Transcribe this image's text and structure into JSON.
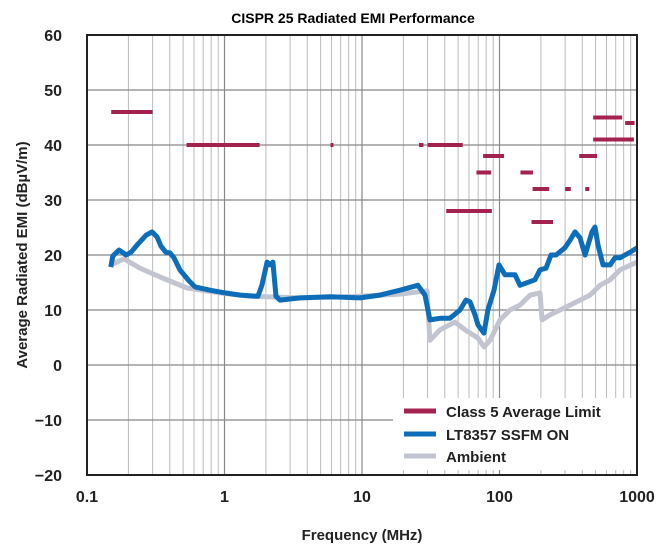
{
  "chart_data": {
    "type": "line",
    "title": "CISPR 25 Radiated EMI Performance",
    "xlabel": "Frequency (MHz)",
    "ylabel": "Average Radiated EMI (dBµV/m)",
    "xscale": "log",
    "xlim": [
      0.1,
      1000
    ],
    "ylim": [
      -20,
      60
    ],
    "xticks": [
      "0.1",
      "1",
      "10",
      "100",
      "1000"
    ],
    "yticks": [
      "−20",
      "−10",
      "0",
      "10",
      "20",
      "30",
      "40",
      "50",
      "60"
    ],
    "grid": true,
    "legend_position": "bottom-right",
    "colors": {
      "limit": "#a3224f",
      "ssfm": "#0d6db8",
      "ambient": "#c2c5cf"
    },
    "limit_segments": {
      "name": "Class 5 Average Limit",
      "segments": [
        {
          "f": [
            0.15,
            0.3
          ],
          "db": 46
        },
        {
          "f": [
            0.53,
            1.8
          ],
          "db": 40
        },
        {
          "f": [
            5.9,
            6.2
          ],
          "db": 40
        },
        {
          "f": [
            26,
            28
          ],
          "db": 40
        },
        {
          "f": [
            30,
            54
          ],
          "db": 40
        },
        {
          "f": [
            41,
            88
          ],
          "db": 28
        },
        {
          "f": [
            68,
            87
          ],
          "db": 35
        },
        {
          "f": [
            76,
            108
          ],
          "db": 38
        },
        {
          "f": [
            142,
            175
          ],
          "db": 35
        },
        {
          "f": [
            174,
            230
          ],
          "db": 32
        },
        {
          "f": [
            171,
            245
          ],
          "db": 26
        },
        {
          "f": [
            300,
            330
          ],
          "db": 32
        },
        {
          "f": [
            420,
            450
          ],
          "db": 32
        },
        {
          "f": [
            380,
            512
          ],
          "db": 38
        },
        {
          "f": [
            480,
            780
          ],
          "db": 45
        },
        {
          "f": [
            480,
            950
          ],
          "db": 41
        },
        {
          "f": [
            820,
            960
          ],
          "db": 44
        }
      ]
    },
    "series": [
      {
        "name": "LT8357 SSFM ON",
        "x": [
          0.149,
          0.154,
          0.171,
          0.183,
          0.192,
          0.209,
          0.231,
          0.269,
          0.297,
          0.323,
          0.345,
          0.375,
          0.401,
          0.429,
          0.474,
          0.552,
          0.61,
          0.785,
          1.01,
          1.3,
          1.75,
          1.87,
          2.04,
          2.14,
          2.25,
          2.37,
          2.53,
          3.54,
          5.85,
          9.67,
          13.5,
          18.9,
          25.5,
          28.7,
          31.2,
          36.9,
          43.6,
          51.6,
          57.0,
          61.0,
          66.3,
          69.8,
          77.1,
          82.4,
          91.2,
          99.1,
          109.6,
          129.7,
          141,
          181,
          197,
          218,
          237,
          258,
          299,
          326,
          354,
          385,
          419,
          471,
          495,
          520,
          566,
          637,
          692,
          752,
          818,
          889,
          1000
        ],
        "y": [
          17.8,
          19.8,
          20.9,
          20.4,
          20.0,
          20.5,
          21.8,
          23.6,
          24.2,
          23.3,
          21.6,
          20.5,
          20.4,
          19.5,
          17.3,
          15.3,
          14.2,
          13.6,
          13.1,
          12.7,
          12.5,
          14.5,
          18.7,
          18.2,
          18.7,
          12.5,
          11.8,
          12.2,
          12.4,
          12.2,
          12.7,
          13.6,
          14.5,
          12.7,
          8.2,
          8.5,
          8.5,
          10.0,
          11.8,
          11.5,
          9.1,
          7.3,
          5.8,
          10.0,
          13.6,
          18.2,
          16.4,
          16.4,
          14.5,
          15.5,
          17.3,
          17.6,
          20.0,
          20.0,
          21.3,
          22.7,
          24.2,
          23.1,
          20.0,
          24.2,
          25.1,
          21.8,
          18.2,
          18.2,
          19.5,
          19.5,
          20.0,
          20.5,
          21.3
        ]
      },
      {
        "name": "Ambient",
        "x": [
          0.149,
          0.186,
          0.243,
          0.34,
          0.533,
          0.927,
          1.53,
          3.54,
          8.19,
          18.9,
          29.7,
          31.2,
          36.9,
          47.4,
          56.1,
          69.8,
          77.1,
          85.3,
          100.8,
          119,
          141,
          167,
          197,
          204,
          233,
          326,
          455,
          538,
          637,
          752,
          1000
        ],
        "y": [
          18.2,
          19.3,
          17.6,
          16.0,
          14.0,
          13.1,
          12.5,
          12.2,
          12.4,
          12.9,
          13.5,
          4.5,
          6.4,
          7.8,
          6.4,
          4.9,
          3.3,
          4.5,
          8.2,
          10.0,
          10.9,
          12.7,
          13.1,
          8.2,
          9.1,
          10.9,
          12.7,
          14.5,
          15.5,
          17.3,
          18.7
        ]
      }
    ],
    "legend": [
      "Class 5 Average Limit",
      "LT8357 SSFM ON",
      "Ambient"
    ]
  }
}
